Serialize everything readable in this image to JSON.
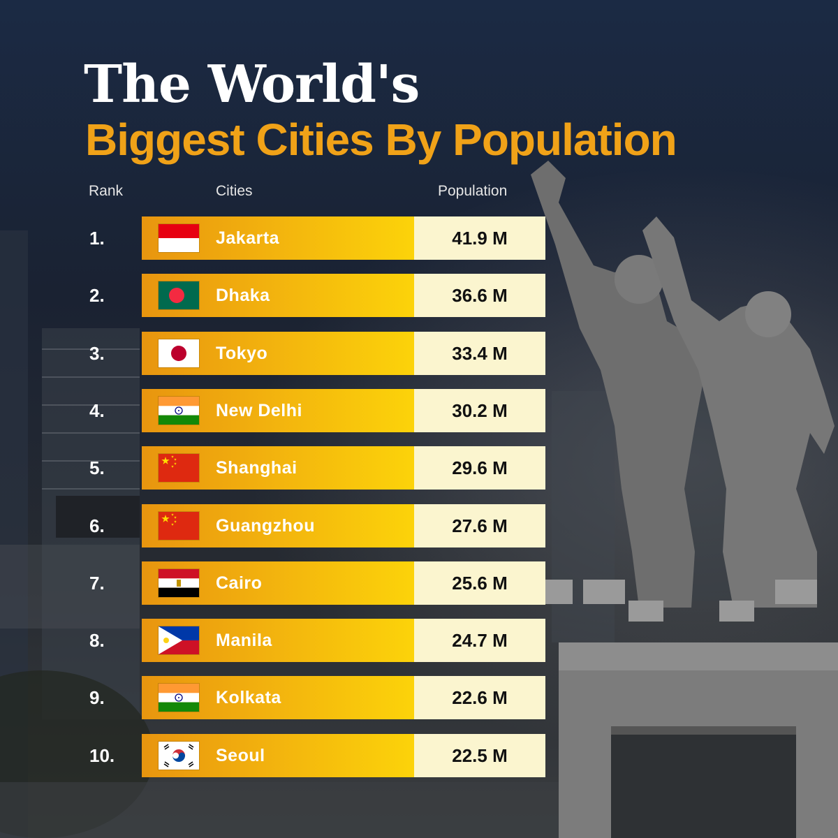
{
  "title": {
    "line1": "The World's",
    "line2": "Biggest Cities By Population"
  },
  "headers": {
    "rank": "Rank",
    "cities": "Cities",
    "population": "Population"
  },
  "rows": [
    {
      "rank": "1.",
      "city": "Jakarta",
      "population": "41.9 M",
      "flag": "indonesia-flag"
    },
    {
      "rank": "2.",
      "city": "Dhaka",
      "population": "36.6 M",
      "flag": "bangladesh-flag"
    },
    {
      "rank": "3.",
      "city": "Tokyo",
      "population": "33.4 M",
      "flag": "japan-flag"
    },
    {
      "rank": "4.",
      "city": "New Delhi",
      "population": "30.2 M",
      "flag": "india-flag"
    },
    {
      "rank": "5.",
      "city": "Shanghai",
      "population": "29.6 M",
      "flag": "china-flag"
    },
    {
      "rank": "6.",
      "city": "Guangzhou",
      "population": "27.6 M",
      "flag": "china-flag"
    },
    {
      "rank": "7.",
      "city": "Cairo",
      "population": "25.6 M",
      "flag": "egypt-flag"
    },
    {
      "rank": "8.",
      "city": "Manila",
      "population": "24.7 M",
      "flag": "philippines-flag"
    },
    {
      "rank": "9.",
      "city": "Kolkata",
      "population": "22.6 M",
      "flag": "india-flag"
    },
    {
      "rank": "10.",
      "city": "Seoul",
      "population": "22.5 M",
      "flag": "south-korea-flag"
    }
  ],
  "colors": {
    "title_accent": "#f0a218",
    "bar_start": "#e8950f",
    "bar_end": "#fcd30a",
    "value_cell": "#fbf5cf",
    "background": "#1d2535"
  },
  "chart_data": {
    "type": "table",
    "title": "The World's Biggest Cities By Population",
    "columns": [
      "Rank",
      "Cities",
      "Population"
    ],
    "categories": [
      "Jakarta",
      "Dhaka",
      "Tokyo",
      "New Delhi",
      "Shanghai",
      "Guangzhou",
      "Cairo",
      "Manila",
      "Kolkata",
      "Seoul"
    ],
    "values": [
      41.9,
      36.6,
      33.4,
      30.2,
      29.6,
      27.6,
      25.6,
      24.7,
      22.6,
      22.5
    ],
    "unit": "M"
  }
}
